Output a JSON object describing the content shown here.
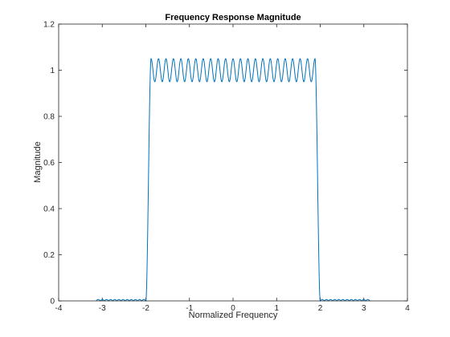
{
  "window": {
    "title": ""
  },
  "colors": {
    "line": "#0072BD",
    "axes": "#262626",
    "background": "#ffffff"
  },
  "chart_data": {
    "type": "line",
    "title": "Frequency Response Magnitude",
    "xlabel": "Normalized Frequency",
    "ylabel": "Magnitude",
    "xlim": [
      -4,
      4
    ],
    "ylim": [
      0,
      1.2
    ],
    "xticks": [
      -4,
      -3,
      -2,
      -1,
      0,
      1,
      2,
      3,
      4
    ],
    "xtick_labels": [
      "-4",
      "-3",
      "-2",
      "-1",
      "0",
      "1",
      "2",
      "3",
      "4"
    ],
    "yticks": [
      0,
      0.2,
      0.4,
      0.6,
      0.8,
      1,
      1.2
    ],
    "ytick_labels": [
      "0",
      "0.2",
      "0.4",
      "0.6",
      "0.8",
      "1",
      "1.2"
    ],
    "grid": false,
    "legend": "none",
    "series": [
      {
        "passband": [
          -1.88,
          1.88
        ],
        "passband_level": 1.0,
        "passband_ripple_amplitude": 0.05,
        "passband_ripple_count": 22,
        "transition_edges": [
          -2.0,
          2.0
        ],
        "stopband": [
          -3.14,
          3.14
        ],
        "stopband_ripple_amplitude": 0.006,
        "stopband_ripple_count": 12
      }
    ]
  }
}
